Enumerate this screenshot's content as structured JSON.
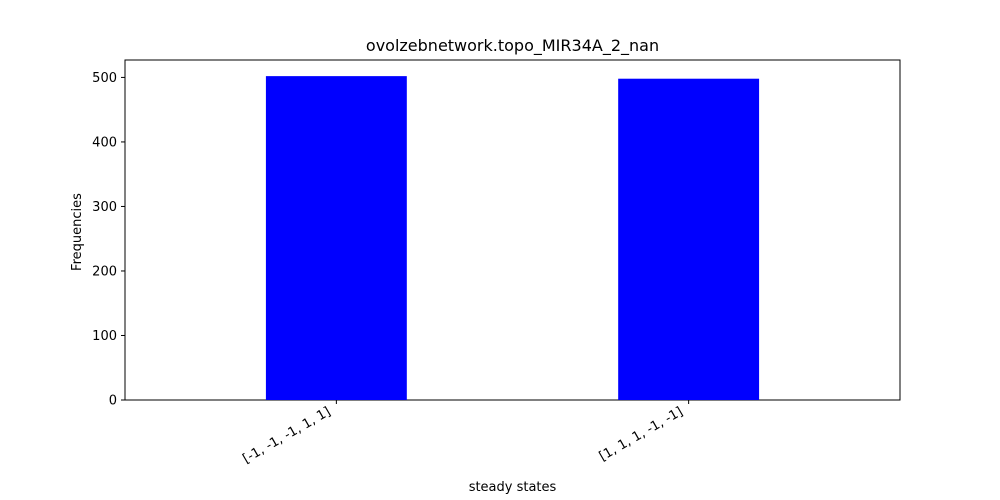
{
  "chart_data": {
    "type": "bar",
    "title": "ovolzebnetwork.topo_MIR34A_2_nan",
    "xlabel": "steady states",
    "ylabel": "Frequencies",
    "categories": [
      "[-1, -1, -1, 1, 1]",
      "[1, 1, 1, -1, -1]"
    ],
    "values": [
      502,
      498
    ],
    "ylim": [
      0,
      527
    ],
    "yticks": [
      0,
      100,
      200,
      300,
      400,
      500
    ],
    "bar_color": "#0000ff",
    "grid": false
  }
}
